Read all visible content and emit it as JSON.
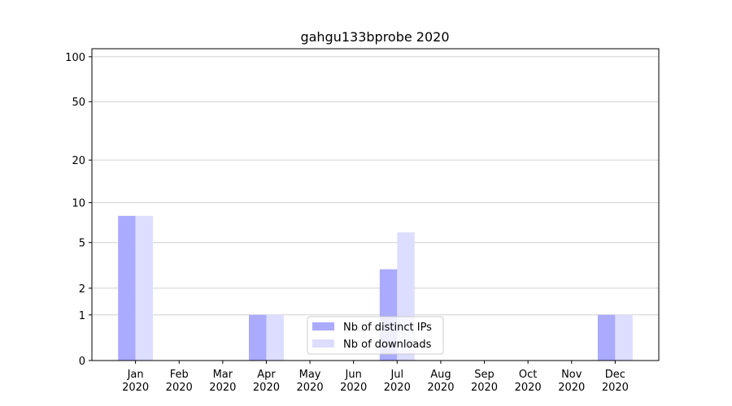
{
  "chart_data": {
    "type": "bar",
    "title": "gahgu133bprobe 2020",
    "categories": [
      "Jan\n2020",
      "Feb\n2020",
      "Mar\n2020",
      "Apr\n2020",
      "May\n2020",
      "Jun\n2020",
      "Jul\n2020",
      "Aug\n2020",
      "Sep\n2020",
      "Oct\n2020",
      "Nov\n2020",
      "Dec\n2020"
    ],
    "series": [
      {
        "name": "Nb of distinct IPs",
        "color": "#aaaaff",
        "values": [
          8,
          0,
          0,
          1,
          0,
          0,
          3,
          0,
          0,
          0,
          0,
          1
        ]
      },
      {
        "name": "Nb of downloads",
        "color": "#ddddff",
        "values": [
          8,
          0,
          0,
          1,
          0,
          0,
          6,
          0,
          0,
          0,
          0,
          1
        ]
      }
    ],
    "yscale": "log1p",
    "ylim": [
      0,
      113
    ],
    "yticks": [
      0,
      1,
      2,
      5,
      10,
      20,
      50,
      100
    ],
    "grid": true,
    "legend": "lower center"
  }
}
